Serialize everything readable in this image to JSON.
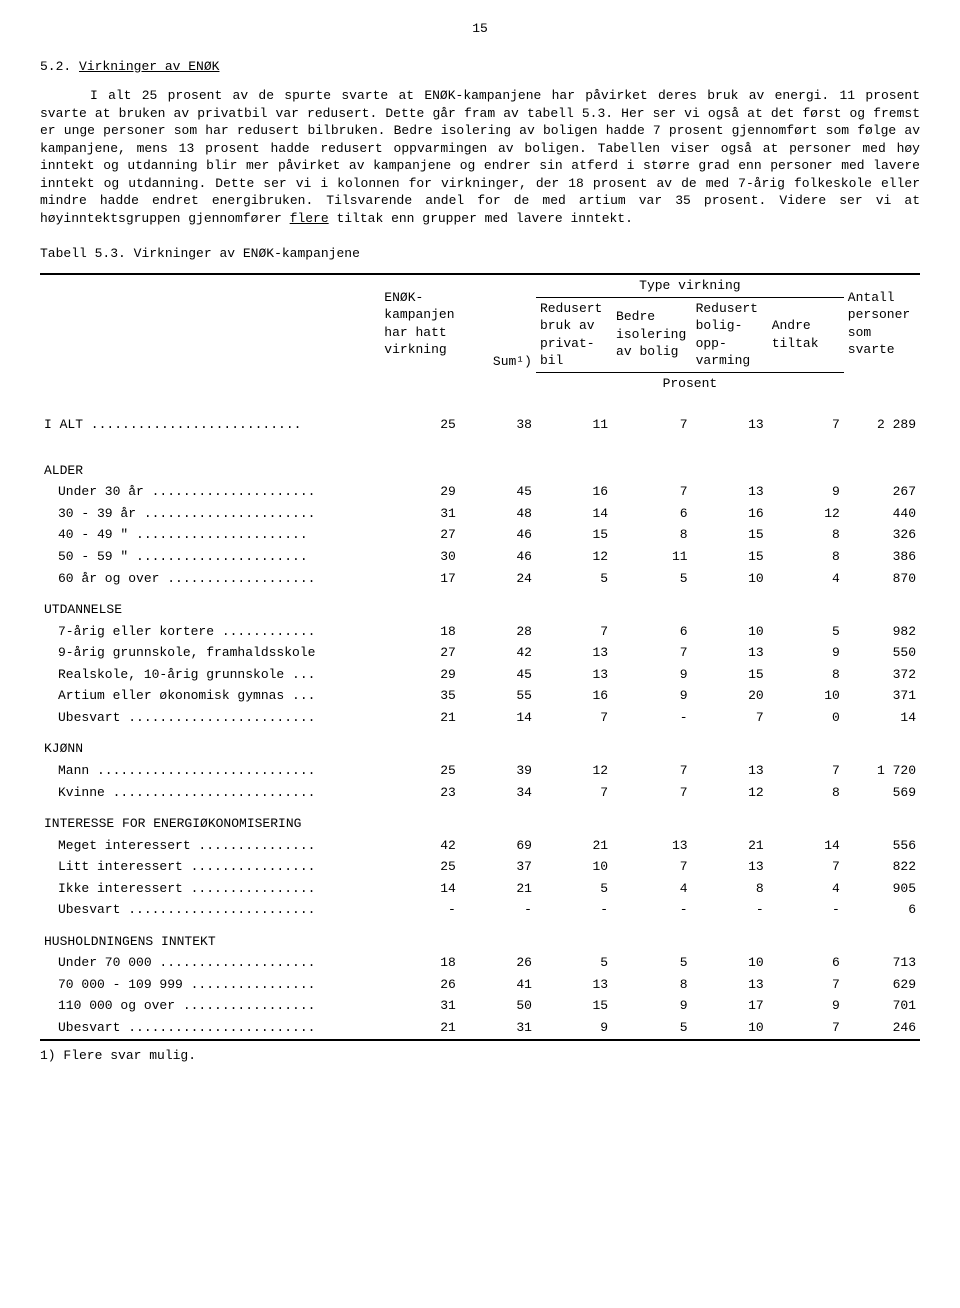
{
  "pageNumber": "15",
  "sectionNumber": "5.2.",
  "sectionTitle": "Virkninger av ENØK",
  "paragraph": "I alt 25 prosent av de spurte svarte at ENØK-kampanjene har påvirket deres bruk av energi. 11 prosent svarte at bruken av privatbil var redusert. Dette går fram av tabell 5.3. Her ser vi også at det først og fremst er unge personer som har redusert bilbruken. Bedre isolering av boligen hadde 7 prosent gjennomført som følge av kampanjene, mens 13 prosent hadde redusert oppvarmingen av boligen. Tabellen viser også at personer med høy inntekt og utdanning blir mer påvirket av kampanjene og endrer sin atferd i større grad enn personer med lavere inntekt og utdanning. Dette ser vi i kolonnen for virkninger, der 18 prosent av de med 7-årig folkeskole eller mindre hadde endret energibruken. Tilsvarende andel for de med artium var 35 prosent. Videre ser vi at høyinntektsgruppen gjennomfører ",
  "paragraph_underlined": "flere",
  "paragraph_end": " tiltak enn grupper med lavere inntekt.",
  "tableNumber": "Tabell 5.3.",
  "tableTitle": "Virkninger av ENØK-kampanjene",
  "headers": {
    "c1": "ENØK-\nkampanjen\nhar hatt\nvirkning",
    "c2": "Sum¹)",
    "type": "Type virkning",
    "c3": "Redusert\nbruk av\nprivat-\nbil",
    "c4": "Bedre\nisolering\nav bolig",
    "c5": "Redusert\nbolig-\nopp-\nvarming",
    "c6": "Andre\ntiltak",
    "c7": "Antall\npersoner\nsom\nsvarte",
    "prosent": "Prosent"
  },
  "groups": [
    {
      "label": "I ALT ...........................",
      "ialt": true,
      "rows": [
        {
          "label": "",
          "v": [
            "25",
            "38",
            "11",
            "7",
            "13",
            "7",
            "2 289"
          ]
        }
      ]
    },
    {
      "label": "ALDER",
      "rows": [
        {
          "label": "Under 30 år .....................",
          "v": [
            "29",
            "45",
            "16",
            "7",
            "13",
            "9",
            "267"
          ]
        },
        {
          "label": "30 - 39 år ......................",
          "v": [
            "31",
            "48",
            "14",
            "6",
            "16",
            "12",
            "440"
          ]
        },
        {
          "label": "40 - 49 \"  ......................",
          "v": [
            "27",
            "46",
            "15",
            "8",
            "15",
            "8",
            "326"
          ]
        },
        {
          "label": "50 - 59 \"  ......................",
          "v": [
            "30",
            "46",
            "12",
            "11",
            "15",
            "8",
            "386"
          ]
        },
        {
          "label": "60 år og over ...................",
          "v": [
            "17",
            "24",
            "5",
            "5",
            "10",
            "4",
            "870"
          ]
        }
      ]
    },
    {
      "label": "UTDANNELSE",
      "rows": [
        {
          "label": "7-årig eller kortere ............",
          "v": [
            "18",
            "28",
            "7",
            "6",
            "10",
            "5",
            "982"
          ]
        },
        {
          "label": "9-årig grunnskole, framhaldsskole",
          "v": [
            "27",
            "42",
            "13",
            "7",
            "13",
            "9",
            "550"
          ]
        },
        {
          "label": "Realskole, 10-årig grunnskole ...",
          "v": [
            "29",
            "45",
            "13",
            "9",
            "15",
            "8",
            "372"
          ]
        },
        {
          "label": "Artium eller økonomisk gymnas ...",
          "v": [
            "35",
            "55",
            "16",
            "9",
            "20",
            "10",
            "371"
          ]
        },
        {
          "label": "Ubesvart ........................",
          "v": [
            "21",
            "14",
            "7",
            "-",
            "7",
            "0",
            "14"
          ]
        }
      ]
    },
    {
      "label": "KJØNN",
      "rows": [
        {
          "label": "Mann ............................",
          "v": [
            "25",
            "39",
            "12",
            "7",
            "13",
            "7",
            "1 720"
          ]
        },
        {
          "label": "Kvinne ..........................",
          "v": [
            "23",
            "34",
            "7",
            "7",
            "12",
            "8",
            "569"
          ]
        }
      ]
    },
    {
      "label": "INTERESSE FOR ENERGIØKONOMISERING",
      "rows": [
        {
          "label": "Meget interessert ...............",
          "v": [
            "42",
            "69",
            "21",
            "13",
            "21",
            "14",
            "556"
          ]
        },
        {
          "label": "Litt interessert ................",
          "v": [
            "25",
            "37",
            "10",
            "7",
            "13",
            "7",
            "822"
          ]
        },
        {
          "label": "Ikke interessert ................",
          "v": [
            "14",
            "21",
            "5",
            "4",
            "8",
            "4",
            "905"
          ]
        },
        {
          "label": "Ubesvart ........................",
          "v": [
            "-",
            "-",
            "-",
            "-",
            "-",
            "-",
            "6"
          ]
        }
      ]
    },
    {
      "label": "HUSHOLDNINGENS INNTEKT",
      "rows": [
        {
          "label": "Under 70 000 ....................",
          "v": [
            "18",
            "26",
            "5",
            "5",
            "10",
            "6",
            "713"
          ]
        },
        {
          "label": "70 000 - 109 999 ................",
          "v": [
            "26",
            "41",
            "13",
            "8",
            "13",
            "7",
            "629"
          ]
        },
        {
          "label": "110 000 og over .................",
          "v": [
            "31",
            "50",
            "15",
            "9",
            "17",
            "9",
            "701"
          ]
        },
        {
          "label": "Ubesvart ........................",
          "v": [
            "21",
            "31",
            "9",
            "5",
            "10",
            "7",
            "246"
          ]
        }
      ]
    }
  ],
  "footnote": "1) Flere svar mulig."
}
